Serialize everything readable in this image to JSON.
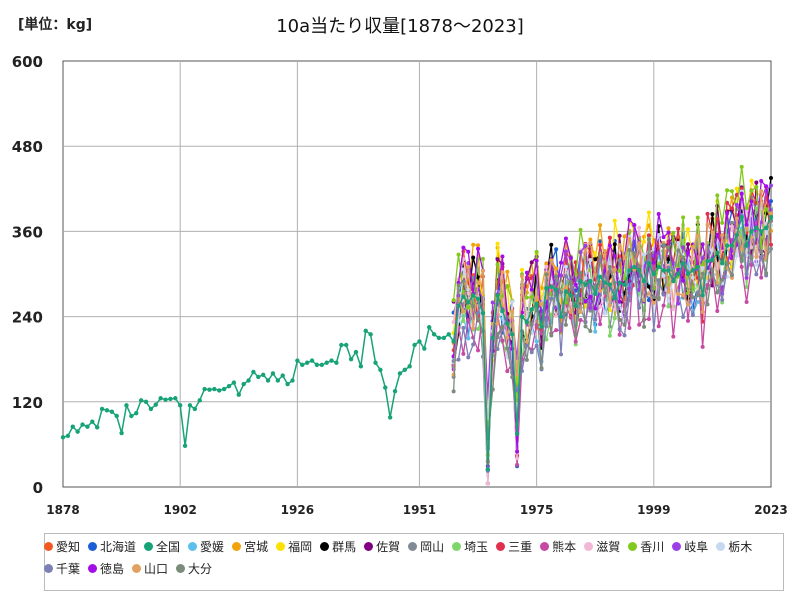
{
  "unit_label": "[単位：kg]",
  "chart_data": {
    "type": "line",
    "title": "10a当たり収量[1878～2023]",
    "xlabel": "",
    "ylabel": "",
    "xlim": [
      1878,
      2023
    ],
    "ylim": [
      0,
      600
    ],
    "x_ticks": [
      "1878",
      "1902",
      "1926",
      "1951",
      "1975",
      "1999",
      "2023"
    ],
    "y_ticks": [
      "0",
      "120",
      "240",
      "360",
      "480",
      "600"
    ],
    "grid": true,
    "legend_position": "bottom",
    "national": {
      "name": "全国",
      "color": "#17a377",
      "x": [
        1878,
        1879,
        1880,
        1881,
        1882,
        1883,
        1884,
        1885,
        1886,
        1887,
        1888,
        1889,
        1890,
        1891,
        1892,
        1893,
        1894,
        1895,
        1896,
        1897,
        1898,
        1899,
        1900,
        1901,
        1902,
        1903,
        1904,
        1905,
        1906,
        1907,
        1908,
        1909,
        1910,
        1911,
        1912,
        1913,
        1914,
        1915,
        1916,
        1917,
        1918,
        1919,
        1920,
        1921,
        1922,
        1923,
        1924,
        1925,
        1926,
        1927,
        1928,
        1929,
        1930,
        1931,
        1932,
        1933,
        1934,
        1935,
        1936,
        1937,
        1938,
        1939,
        1940,
        1941,
        1942,
        1943,
        1944,
        1945,
        1946,
        1947,
        1948,
        1949,
        1950,
        1951,
        1952,
        1953,
        1954,
        1955,
        1956,
        1957,
        1958,
        1959,
        1960,
        1961,
        1962,
        1963,
        1964,
        1965,
        1966,
        1967,
        1968,
        1969,
        1970,
        1971,
        1972,
        1973,
        1974,
        1975,
        1976,
        1977,
        1978,
        1979,
        1980,
        1981,
        1982,
        1983,
        1984,
        1985,
        1986,
        1987,
        1988,
        1989,
        1990,
        1991,
        1992,
        1993,
        1994,
        1995,
        1996,
        1997,
        1998,
        1999,
        2000,
        2001,
        2002,
        2003,
        2004,
        2005,
        2006,
        2007,
        2008,
        2009,
        2010,
        2011,
        2012,
        2013,
        2014,
        2015,
        2016,
        2017,
        2018,
        2019,
        2020,
        2021,
        2022,
        2023
      ],
      "values": [
        70,
        72,
        85,
        78,
        88,
        85,
        92,
        84,
        110,
        108,
        106,
        100,
        76,
        115,
        100,
        104,
        122,
        120,
        110,
        116,
        125,
        123,
        124,
        125,
        115,
        58,
        115,
        110,
        122,
        138,
        137,
        138,
        136,
        138,
        142,
        147,
        130,
        145,
        150,
        162,
        155,
        158,
        150,
        160,
        150,
        157,
        145,
        150,
        178,
        172,
        175,
        178,
        172,
        172,
        175,
        178,
        175,
        200,
        200,
        180,
        190,
        170,
        220,
        215,
        175,
        165,
        140,
        98,
        135,
        160,
        165,
        170,
        200,
        205,
        195,
        225,
        215,
        210,
        210,
        215,
        205,
        255,
        268,
        260,
        270,
        265,
        245,
        25,
        210,
        270,
        248,
        230,
        215,
        75,
        240,
        232,
        250,
        258,
        226,
        280,
        282,
        278,
        240,
        275,
        270,
        255,
        290,
        285,
        290,
        272,
        296,
        288,
        285,
        266,
        288,
        285,
        305,
        310,
        305,
        290,
        315,
        300,
        310,
        305,
        305,
        290,
        300,
        315,
        300,
        305,
        310,
        270,
        318,
        320,
        330,
        315,
        340,
        340,
        355,
        380,
        340,
        360,
        365,
        360,
        365,
        380
      ]
    },
    "prefecture_series": [
      {
        "name": "愛知",
        "color": "#f25a22"
      },
      {
        "name": "北海道",
        "color": "#1a5fd6"
      },
      {
        "name": "愛媛",
        "color": "#5bc0eb"
      },
      {
        "name": "宮城",
        "color": "#f0a30a"
      },
      {
        "name": "福岡",
        "color": "#fde102"
      },
      {
        "name": "群馬",
        "color": "#000000"
      },
      {
        "name": "佐賀",
        "color": "#800080"
      },
      {
        "name": "岡山",
        "color": "#808b96"
      },
      {
        "name": "埼玉",
        "color": "#7ed66a"
      },
      {
        "name": "三重",
        "color": "#e0304d"
      },
      {
        "name": "熊本",
        "color": "#c64aa3"
      },
      {
        "name": "滋賀",
        "color": "#f3b6d6"
      },
      {
        "name": "香川",
        "color": "#82c91e"
      },
      {
        "name": "岐阜",
        "color": "#9b40e6"
      },
      {
        "name": "栃木",
        "color": "#c7d9f0"
      },
      {
        "name": "千葉",
        "color": "#7f7fb7"
      },
      {
        "name": "徳島",
        "color": "#a50de8"
      },
      {
        "name": "山口",
        "color": "#e2a161"
      },
      {
        "name": "大分",
        "color": "#7b8c7b"
      }
    ]
  },
  "legend": [
    {
      "name": "愛知",
      "color": "#f25a22"
    },
    {
      "name": "北海道",
      "color": "#1a5fd6"
    },
    {
      "name": "全国",
      "color": "#17a377"
    },
    {
      "name": "愛媛",
      "color": "#5bc0eb"
    },
    {
      "name": "宮城",
      "color": "#f0a30a"
    },
    {
      "name": "福岡",
      "color": "#fde102"
    },
    {
      "name": "群馬",
      "color": "#000000"
    },
    {
      "name": "佐賀",
      "color": "#800080"
    },
    {
      "name": "岡山",
      "color": "#808b96"
    },
    {
      "name": "埼玉",
      "color": "#7ed66a"
    },
    {
      "name": "三重",
      "color": "#e0304d"
    },
    {
      "name": "熊本",
      "color": "#c64aa3"
    },
    {
      "name": "滋賀",
      "color": "#f3b6d6"
    },
    {
      "name": "香川",
      "color": "#82c91e"
    },
    {
      "name": "岐阜",
      "color": "#9b40e6"
    },
    {
      "name": "栃木",
      "color": "#c7d9f0"
    },
    {
      "name": "千葉",
      "color": "#7f7fb7"
    },
    {
      "name": "徳島",
      "color": "#a50de8"
    },
    {
      "name": "山口",
      "color": "#e2a161"
    },
    {
      "name": "大分",
      "color": "#7b8c7b"
    }
  ]
}
